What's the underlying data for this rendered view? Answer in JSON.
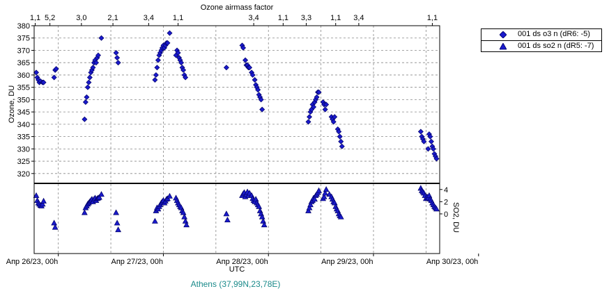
{
  "colors": {
    "marker_fill": "#1a1acc",
    "marker_stroke": "#000066",
    "grid": "#888888",
    "station": "#1a8a8a"
  },
  "chart_data": [
    {
      "type": "scatter",
      "title": "",
      "top_axis_label": "Ozone airmass factor",
      "top_ticks": [
        "1,1",
        "5,2",
        "3,0",
        "2,1",
        "3,4",
        "1,1",
        "3,4",
        "1,1",
        "3,3",
        "1,1",
        "3,4",
        "1,1"
      ],
      "ylabel": "Ozone, DU",
      "ylim": [
        316,
        380
      ],
      "yticks": [
        320,
        325,
        330,
        335,
        340,
        345,
        350,
        355,
        360,
        365,
        370,
        375,
        380
      ],
      "series": [
        {
          "name": "001 ds o3  n (dR6: -5)",
          "marker": "diamond",
          "points": [
            [
              25.79,
              361
            ],
            [
              25.8,
              359
            ],
            [
              25.81,
              358
            ],
            [
              25.82,
              357
            ],
            [
              25.83,
              357.5
            ],
            [
              25.85,
              357
            ],
            [
              25.86,
              357
            ],
            [
              25.96,
              359
            ],
            [
              25.97,
              362
            ],
            [
              25.98,
              362.5
            ],
            [
              26.25,
              342
            ],
            [
              26.26,
              349
            ],
            [
              26.27,
              351
            ],
            [
              26.28,
              355
            ],
            [
              26.29,
              357
            ],
            [
              26.3,
              359
            ],
            [
              26.31,
              361
            ],
            [
              26.32,
              362
            ],
            [
              26.33,
              363
            ],
            [
              26.34,
              365
            ],
            [
              26.35,
              366
            ],
            [
              26.36,
              365
            ],
            [
              26.37,
              367
            ],
            [
              26.38,
              368
            ],
            [
              26.41,
              375
            ],
            [
              26.55,
              369
            ],
            [
              26.56,
              367
            ],
            [
              26.57,
              365
            ],
            [
              26.92,
              358
            ],
            [
              26.93,
              360
            ],
            [
              26.94,
              363
            ],
            [
              26.95,
              366
            ],
            [
              26.96,
              368
            ],
            [
              26.97,
              369
            ],
            [
              26.98,
              370
            ],
            [
              26.99,
              371
            ],
            [
              27.0,
              372
            ],
            [
              27.01,
              371
            ],
            [
              27.02,
              372
            ],
            [
              27.03,
              373
            ],
            [
              27.04,
              373
            ],
            [
              27.06,
              377
            ],
            [
              27.12,
              368
            ],
            [
              27.13,
              370
            ],
            [
              27.14,
              369
            ],
            [
              27.15,
              367
            ],
            [
              27.16,
              366
            ],
            [
              27.17,
              365
            ],
            [
              27.18,
              363
            ],
            [
              27.19,
              362
            ],
            [
              27.2,
              360
            ],
            [
              27.21,
              359
            ],
            [
              27.6,
              363
            ],
            [
              27.75,
              372
            ],
            [
              27.76,
              371
            ],
            [
              27.78,
              366
            ],
            [
              27.79,
              364
            ],
            [
              27.8,
              364
            ],
            [
              27.81,
              363
            ],
            [
              27.82,
              363
            ],
            [
              27.84,
              361
            ],
            [
              27.85,
              360
            ],
            [
              27.87,
              358
            ],
            [
              27.88,
              356
            ],
            [
              27.89,
              355
            ],
            [
              27.9,
              354
            ],
            [
              27.91,
              352
            ],
            [
              27.92,
              351
            ],
            [
              27.93,
              350
            ],
            [
              27.94,
              346
            ],
            [
              28.38,
              341
            ],
            [
              28.39,
              343
            ],
            [
              28.4,
              345
            ],
            [
              28.41,
              346
            ],
            [
              28.42,
              348
            ],
            [
              28.43,
              347
            ],
            [
              28.44,
              349
            ],
            [
              28.45,
              350
            ],
            [
              28.46,
              351
            ],
            [
              28.47,
              353
            ],
            [
              28.48,
              353
            ],
            [
              28.52,
              349
            ],
            [
              28.53,
              348
            ],
            [
              28.54,
              346
            ],
            [
              28.55,
              348
            ],
            [
              28.6,
              343
            ],
            [
              28.61,
              342
            ],
            [
              28.62,
              341
            ],
            [
              28.63,
              343
            ],
            [
              28.66,
              338
            ],
            [
              28.67,
              337
            ],
            [
              28.68,
              335
            ],
            [
              28.69,
              333
            ],
            [
              28.7,
              331
            ],
            [
              29.45,
              337
            ],
            [
              29.46,
              335
            ],
            [
              29.47,
              334
            ],
            [
              29.48,
              333
            ],
            [
              29.52,
              330
            ],
            [
              29.53,
              336
            ],
            [
              29.54,
              335
            ],
            [
              29.55,
              333
            ],
            [
              29.56,
              331
            ],
            [
              29.57,
              330
            ],
            [
              29.58,
              328
            ],
            [
              29.59,
              327
            ],
            [
              29.6,
              326
            ]
          ]
        },
        {
          "name": "001 ds so2 n (dR5: -7)",
          "marker": "triangle",
          "ylabel": "SO2, DU",
          "ylim": [
            -6.5,
            5
          ],
          "yticks": [
            0,
            2,
            4
          ],
          "points": [
            [
              25.79,
              3.0
            ],
            [
              25.8,
              2.2
            ],
            [
              25.81,
              1.8
            ],
            [
              25.82,
              1.6
            ],
            [
              25.83,
              1.4
            ],
            [
              25.84,
              1.3
            ],
            [
              25.85,
              1.6
            ],
            [
              25.86,
              2.1
            ],
            [
              25.96,
              -1.5
            ],
            [
              25.97,
              -2.2
            ],
            [
              26.25,
              0.2
            ],
            [
              26.26,
              1.0
            ],
            [
              26.27,
              1.3
            ],
            [
              26.28,
              1.6
            ],
            [
              26.29,
              1.8
            ],
            [
              26.3,
              2.0
            ],
            [
              26.31,
              2.2
            ],
            [
              26.32,
              2.4
            ],
            [
              26.33,
              2.0
            ],
            [
              26.34,
              2.4
            ],
            [
              26.35,
              2.6
            ],
            [
              26.36,
              2.2
            ],
            [
              26.37,
              2.5
            ],
            [
              26.38,
              2.6
            ],
            [
              26.39,
              2.7
            ],
            [
              26.41,
              3.2
            ],
            [
              26.55,
              0.2
            ],
            [
              26.56,
              -1.5
            ],
            [
              26.57,
              -2.6
            ],
            [
              26.92,
              -1.2
            ],
            [
              26.93,
              0.5
            ],
            [
              26.94,
              1.0
            ],
            [
              26.95,
              0.8
            ],
            [
              26.96,
              1.2
            ],
            [
              26.97,
              1.5
            ],
            [
              26.98,
              1.8
            ],
            [
              26.99,
              2.0
            ],
            [
              27.0,
              2.2
            ],
            [
              27.01,
              1.8
            ],
            [
              27.02,
              2.1
            ],
            [
              27.03,
              2.4
            ],
            [
              27.04,
              2.5
            ],
            [
              27.06,
              2.9
            ],
            [
              27.12,
              2.6
            ],
            [
              27.13,
              2.2
            ],
            [
              27.14,
              1.8
            ],
            [
              27.15,
              1.5
            ],
            [
              27.16,
              1.2
            ],
            [
              27.17,
              1.0
            ],
            [
              27.18,
              0.5
            ],
            [
              27.19,
              0.2
            ],
            [
              27.2,
              -0.5
            ],
            [
              27.21,
              -1.2
            ],
            [
              27.22,
              -1.8
            ],
            [
              27.6,
              0.0
            ],
            [
              27.61,
              -1.0
            ],
            [
              27.75,
              3.0
            ],
            [
              27.76,
              3.3
            ],
            [
              27.77,
              3.5
            ],
            [
              27.78,
              2.8
            ],
            [
              27.79,
              3.2
            ],
            [
              27.8,
              3.6
            ],
            [
              27.81,
              3.0
            ],
            [
              27.82,
              3.4
            ],
            [
              27.84,
              3.0
            ],
            [
              27.85,
              2.5
            ],
            [
              27.86,
              2.2
            ],
            [
              27.87,
              2.0
            ],
            [
              27.88,
              2.4
            ],
            [
              27.89,
              1.8
            ],
            [
              27.9,
              1.5
            ],
            [
              27.91,
              1.2
            ],
            [
              27.92,
              0.5
            ],
            [
              27.93,
              0.0
            ],
            [
              27.94,
              -0.5
            ],
            [
              27.95,
              -1.2
            ],
            [
              27.96,
              -1.8
            ],
            [
              28.38,
              0.5
            ],
            [
              28.39,
              1.0
            ],
            [
              28.4,
              1.5
            ],
            [
              28.41,
              2.0
            ],
            [
              28.42,
              2.2
            ],
            [
              28.43,
              2.6
            ],
            [
              28.44,
              2.4
            ],
            [
              28.45,
              3.0
            ],
            [
              28.46,
              3.2
            ],
            [
              28.47,
              3.5
            ],
            [
              28.48,
              3.8
            ],
            [
              28.52,
              2.5
            ],
            [
              28.53,
              2.8
            ],
            [
              28.54,
              3.4
            ],
            [
              28.55,
              4.0
            ],
            [
              28.58,
              3.2
            ],
            [
              28.6,
              2.8
            ],
            [
              28.61,
              2.4
            ],
            [
              28.62,
              2.0
            ],
            [
              28.63,
              1.8
            ],
            [
              28.64,
              1.2
            ],
            [
              28.65,
              0.8
            ],
            [
              28.66,
              0.5
            ],
            [
              28.67,
              0.0
            ],
            [
              28.68,
              -0.3
            ],
            [
              28.69,
              -0.5
            ],
            [
              29.45,
              4.2
            ],
            [
              29.46,
              3.8
            ],
            [
              29.47,
              3.6
            ],
            [
              29.48,
              3.4
            ],
            [
              29.49,
              3.0
            ],
            [
              29.5,
              2.5
            ],
            [
              29.51,
              2.8
            ],
            [
              29.52,
              2.6
            ],
            [
              29.53,
              3.0
            ],
            [
              29.54,
              2.4
            ],
            [
              29.55,
              2.2
            ],
            [
              29.56,
              1.8
            ],
            [
              29.57,
              1.5
            ],
            [
              29.58,
              1.2
            ],
            [
              29.59,
              1.0
            ],
            [
              29.6,
              0.8
            ]
          ]
        }
      ],
      "xlabel": "UTC",
      "xlim": [
        25.77,
        29.63
      ],
      "xticks": [
        {
          "x": 26.0,
          "label": "Апр 26/23, 00h"
        },
        {
          "x": 27.0,
          "label": "Апр 27/23, 00h"
        },
        {
          "x": 28.0,
          "label": "Апр 28/23, 00h"
        },
        {
          "x": 29.0,
          "label": "Апр 29/23, 00h"
        },
        {
          "x": 30.0,
          "label": "Апр 30/23, 00h"
        }
      ],
      "grid": true,
      "legend": "top-right",
      "station": "Athens (37,99N,23,78E)"
    }
  ]
}
